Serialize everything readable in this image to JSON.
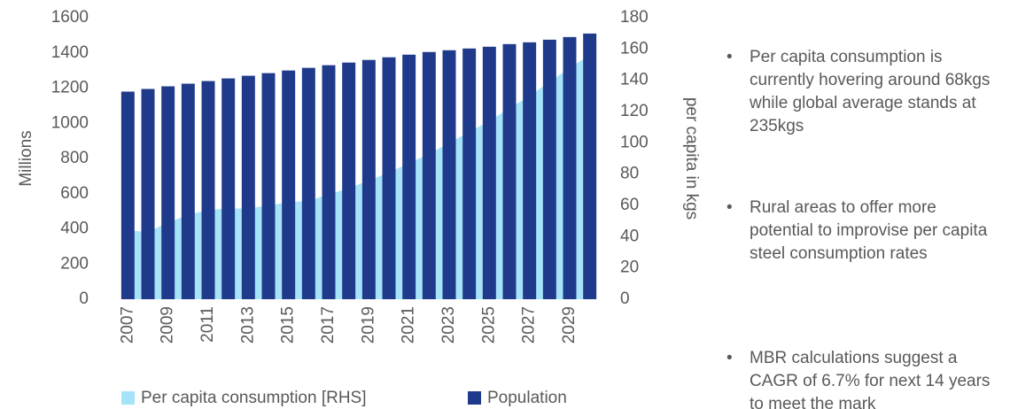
{
  "chart_data": {
    "type": "bar_area",
    "categories": [
      "2007",
      null,
      "2009",
      null,
      "2011",
      null,
      "2013",
      null,
      "2015",
      null,
      "2017",
      null,
      "2019",
      null,
      "2021",
      null,
      "2023",
      null,
      "2025",
      null,
      "2027",
      null,
      "2029",
      null
    ],
    "series": [
      {
        "name": "Per capita consumption [RHS]",
        "color": "#a6e3f8",
        "axis": "y2",
        "values": [
          44,
          43,
          49,
          54,
          57,
          58,
          58,
          60,
          62,
          63,
          67,
          71,
          76,
          81,
          87,
          93,
          100,
          107,
          114,
          122,
          130,
          139,
          148,
          156
        ]
      },
      {
        "name": "Population",
        "color": "#1f3a8a",
        "values": [
          1180,
          1195,
          1210,
          1225,
          1240,
          1255,
          1270,
          1285,
          1300,
          1315,
          1330,
          1345,
          1360,
          1375,
          1390,
          1405,
          1415,
          1425,
          1435,
          1450,
          1460,
          1475,
          1490,
          1510
        ]
      }
    ],
    "ylabel": "Millions",
    "y2label": "per capita in kgs",
    "ylim": [
      0,
      1600
    ],
    "yticks": [
      0,
      200,
      400,
      600,
      800,
      1000,
      1200,
      1400,
      1600
    ],
    "y2lim": [
      0,
      180
    ],
    "y2ticks": [
      0,
      20,
      40,
      60,
      80,
      100,
      120,
      140,
      160,
      180
    ],
    "legend": "bottom"
  },
  "notes": [
    "Per capita consumption is currently hovering around 68kgs while global average stands at 235kgs",
    "Rural areas to offer more potential to improvise per capita steel  consumption rates",
    "MBR calculations suggest a CAGR of 6.7% for next 14 years to meet the mark"
  ]
}
